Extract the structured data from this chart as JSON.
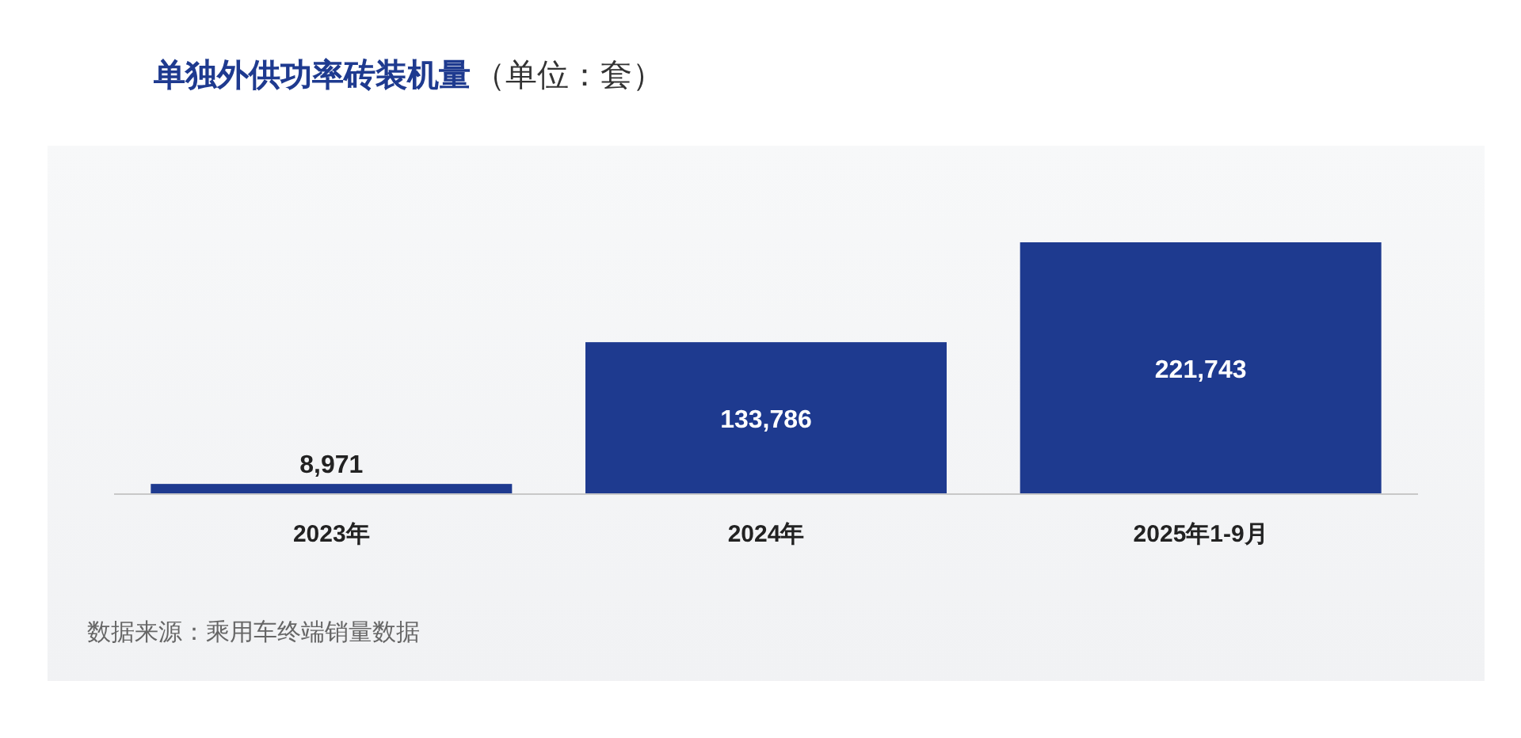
{
  "chart_data": {
    "type": "bar",
    "title": "单独外供功率砖装机量",
    "subtitle": "（单位：套）",
    "categories": [
      "2023年",
      "2024年",
      "2025年1-9月"
    ],
    "values": [
      8971,
      133786,
      221743
    ],
    "value_labels": [
      "8,971",
      "133,786",
      "221,743"
    ],
    "color": "#1e3a8f",
    "annotations": [
      "数据来源：乘用车终端销量数据"
    ]
  }
}
